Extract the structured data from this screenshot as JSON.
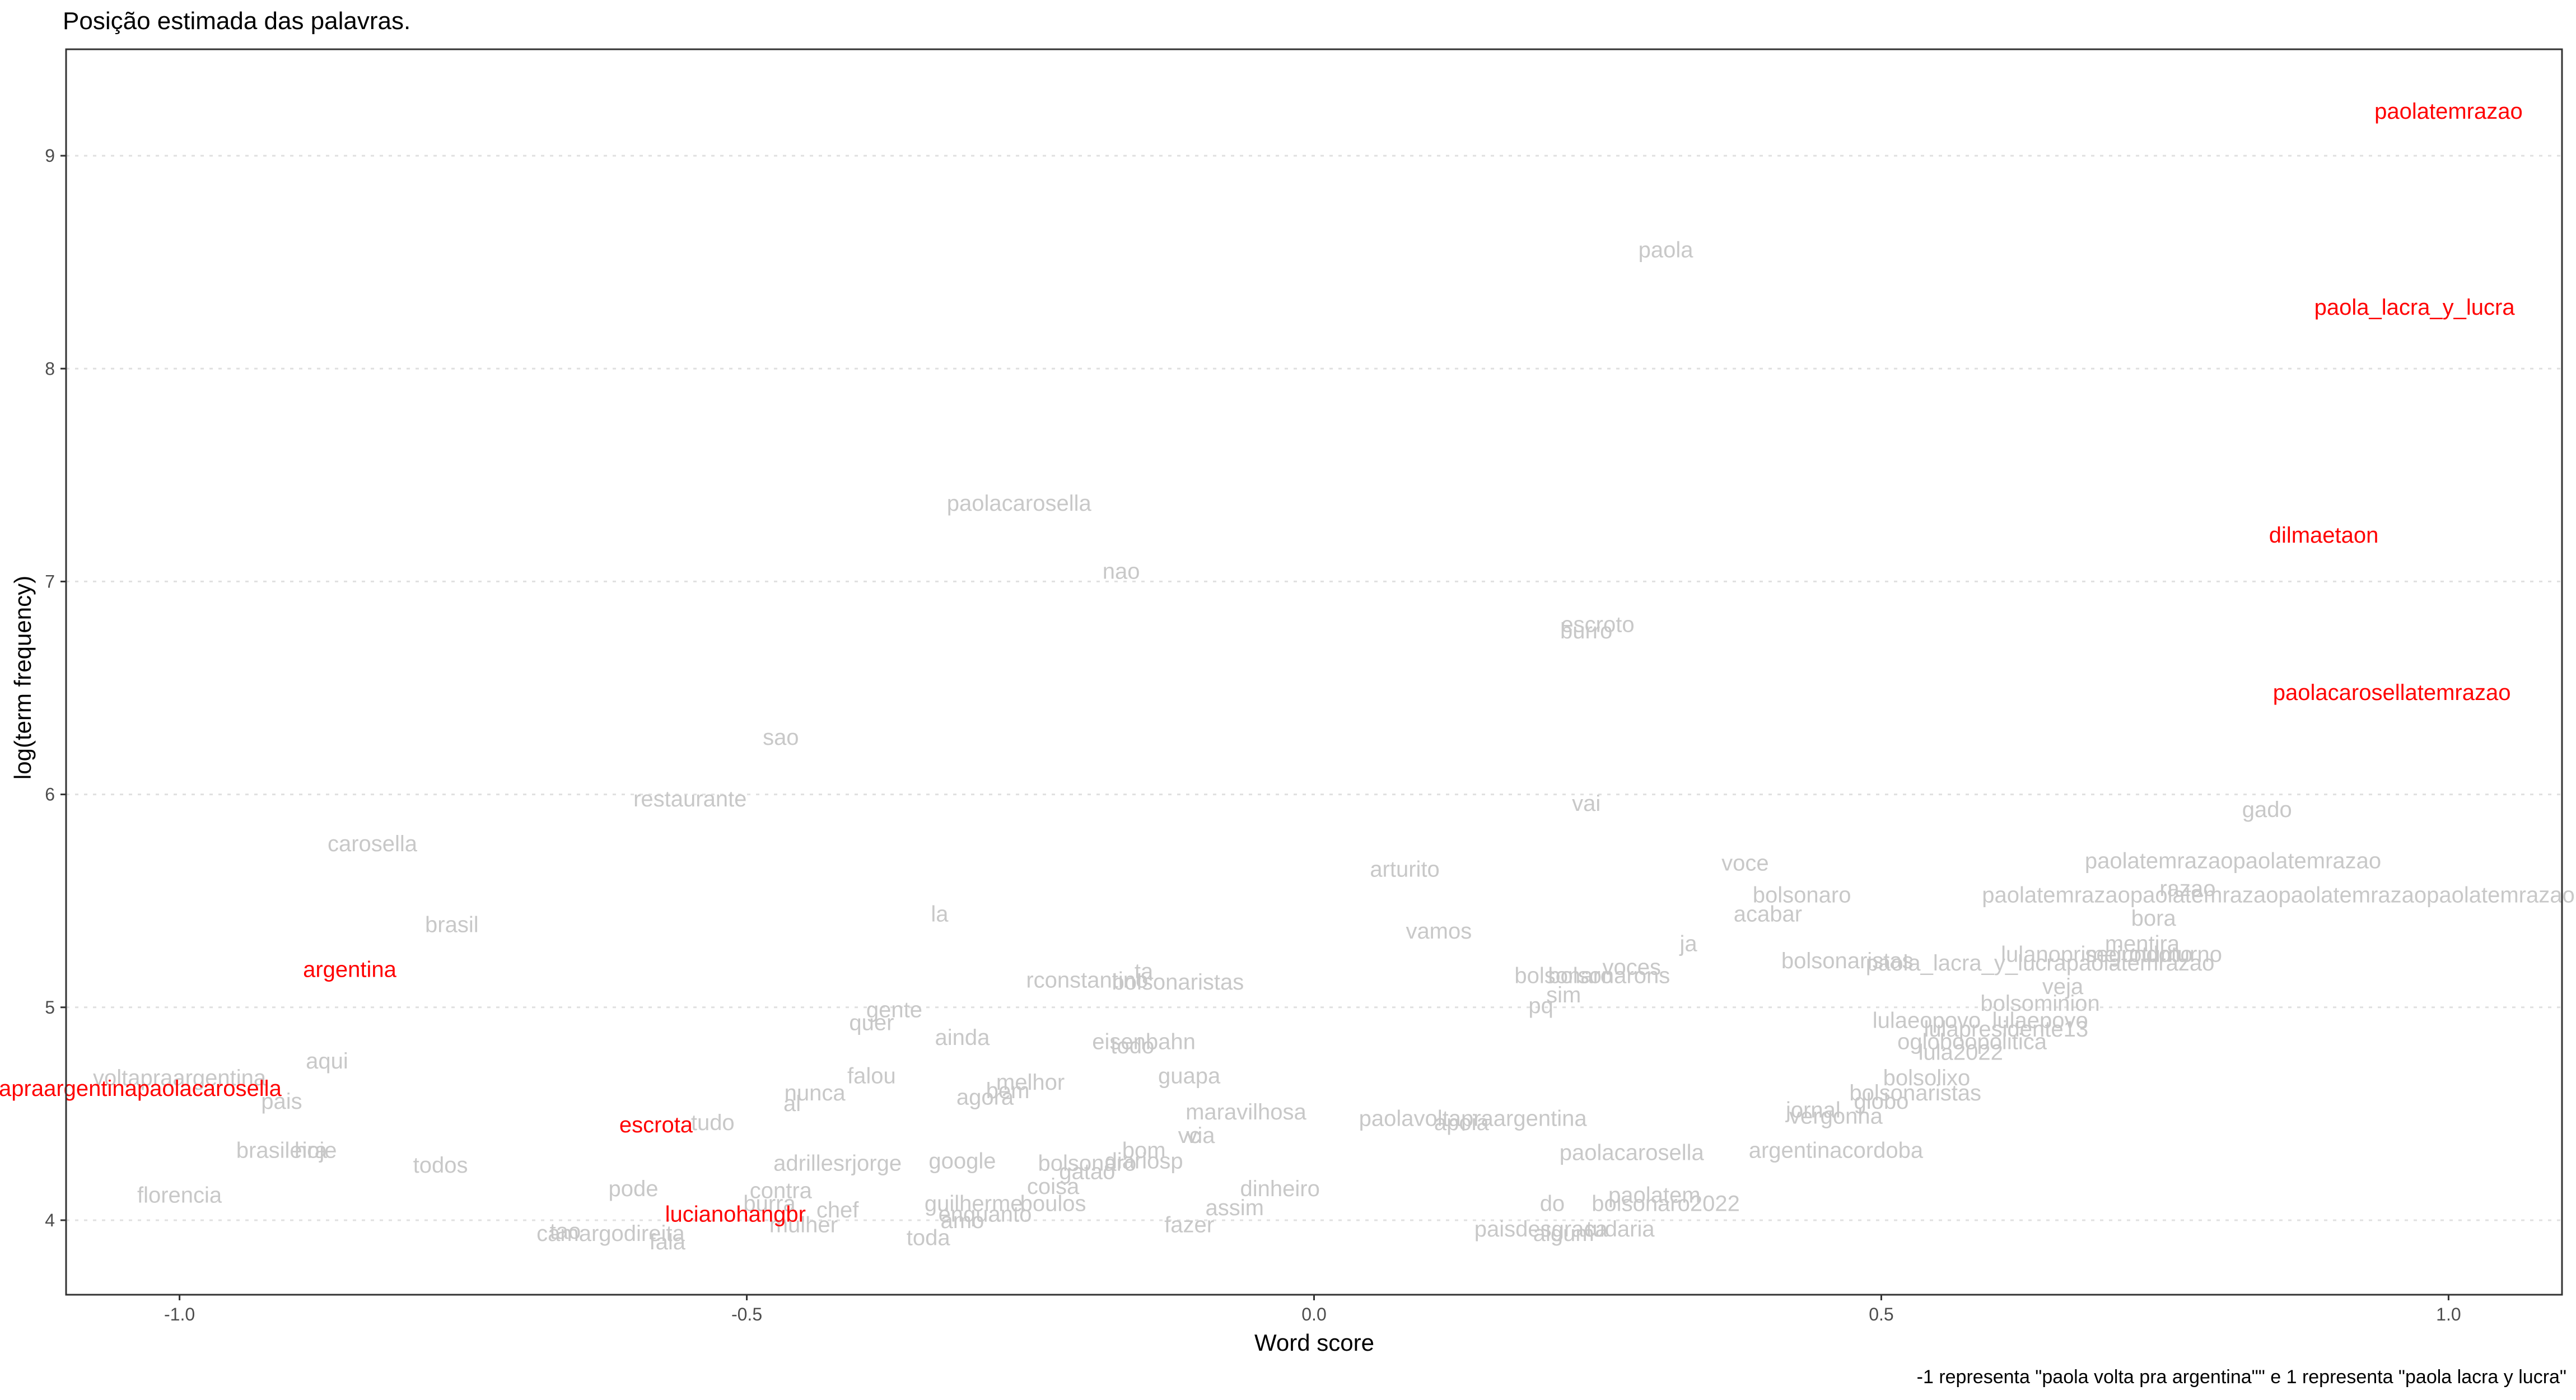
{
  "chart_data": {
    "type": "scatter",
    "title": "Posição estimada das palavras.",
    "caption": "-1 representa \"paola volta pra argentina\"\" e 1 representa \"paola lacra y lucra\"",
    "xlabel": "Word score",
    "ylabel": "log(term frequency)",
    "xlim": [
      -1.1,
      1.1
    ],
    "ylim": [
      3.65,
      9.5
    ],
    "x_ticks": [
      -1.0,
      -0.5,
      0.0,
      0.5,
      1.0
    ],
    "x_tick_labels": [
      "-1.0",
      "-0.5",
      "0.0",
      "0.5",
      "1.0"
    ],
    "y_ticks": [
      4,
      5,
      6,
      7,
      8,
      9
    ],
    "y_tick_labels": [
      "4",
      "5",
      "6",
      "7",
      "8",
      "9"
    ],
    "grid": "horizontal-dotted",
    "colors": {
      "highlight": "#ff0000",
      "other": "#c8c8c8",
      "panel_border": "#333333",
      "gridline": "#e0e0e0"
    },
    "points": [
      {
        "label": "paolatemrazao",
        "x": 1.0,
        "y": 9.21,
        "highlight": true
      },
      {
        "label": "paola_lacra_y_lucra",
        "x": 0.97,
        "y": 8.29,
        "highlight": true
      },
      {
        "label": "dilmaetaon",
        "x": 0.89,
        "y": 7.22,
        "highlight": true
      },
      {
        "label": "paolacarosellatemrazao",
        "x": 0.95,
        "y": 6.48,
        "highlight": true
      },
      {
        "label": "argentina",
        "x": -0.85,
        "y": 5.18,
        "highlight": true
      },
      {
        "label": "voltapraargentinapaolacarosella",
        "x": -1.05,
        "y": 4.62,
        "highlight": true
      },
      {
        "label": "escrota",
        "x": -0.58,
        "y": 4.45,
        "highlight": true
      },
      {
        "label": "lucianohangbr",
        "x": -0.51,
        "y": 4.03,
        "highlight": true
      },
      {
        "label": "paola",
        "x": 0.31,
        "y": 8.56,
        "highlight": false
      },
      {
        "label": "paolacarosella",
        "x": -0.26,
        "y": 7.37,
        "highlight": false
      },
      {
        "label": "nao",
        "x": -0.17,
        "y": 7.05,
        "highlight": false
      },
      {
        "label": "escroto",
        "x": 0.25,
        "y": 6.8,
        "highlight": false
      },
      {
        "label": "burro",
        "x": 0.24,
        "y": 6.77,
        "highlight": false
      },
      {
        "label": "sao",
        "x": -0.47,
        "y": 6.27,
        "highlight": false
      },
      {
        "label": "restaurante",
        "x": -0.55,
        "y": 5.98,
        "highlight": false
      },
      {
        "label": "vai",
        "x": 0.24,
        "y": 5.96,
        "highlight": false
      },
      {
        "label": "gado",
        "x": 0.84,
        "y": 5.93,
        "highlight": false
      },
      {
        "label": "carosella",
        "x": -0.83,
        "y": 5.77,
        "highlight": false
      },
      {
        "label": "arturito",
        "x": 0.08,
        "y": 5.65,
        "highlight": false
      },
      {
        "label": "voce",
        "x": 0.38,
        "y": 5.68,
        "highlight": false
      },
      {
        "label": "paolatemrazaopaolatemrazao",
        "x": 0.81,
        "y": 5.69,
        "highlight": false
      },
      {
        "label": "razao",
        "x": 0.77,
        "y": 5.56,
        "highlight": false
      },
      {
        "label": "bolsonaro",
        "x": 0.43,
        "y": 5.53,
        "highlight": false
      },
      {
        "label": "paolatemrazaopaolatemrazaopaolatemrazaopaolatemrazao",
        "x": 0.85,
        "y": 5.53,
        "highlight": false
      },
      {
        "label": "acabar",
        "x": 0.4,
        "y": 5.44,
        "highlight": false
      },
      {
        "label": "bora",
        "x": 0.74,
        "y": 5.42,
        "highlight": false
      },
      {
        "label": "la",
        "x": -0.33,
        "y": 5.44,
        "highlight": false
      },
      {
        "label": "brasil",
        "x": -0.76,
        "y": 5.39,
        "highlight": false
      },
      {
        "label": "vamos",
        "x": 0.11,
        "y": 5.36,
        "highlight": false
      },
      {
        "label": "ja",
        "x": 0.33,
        "y": 5.3,
        "highlight": false
      },
      {
        "label": "mentira",
        "x": 0.73,
        "y": 5.3,
        "highlight": false
      },
      {
        "label": "segundoturno",
        "x": 0.74,
        "y": 5.25,
        "highlight": false
      },
      {
        "label": "lulanoprimeiroturno",
        "x": 0.69,
        "y": 5.25,
        "highlight": false
      },
      {
        "label": "bolsonaristas",
        "x": 0.47,
        "y": 5.22,
        "highlight": false
      },
      {
        "label": "paola_lacra_y_lucrapaolatemrazao",
        "x": 0.64,
        "y": 5.21,
        "highlight": false
      },
      {
        "label": "voces",
        "x": 0.28,
        "y": 5.19,
        "highlight": false
      },
      {
        "label": "ta",
        "x": -0.15,
        "y": 5.17,
        "highlight": false
      },
      {
        "label": "bolsonarons",
        "x": 0.26,
        "y": 5.15,
        "highlight": false
      },
      {
        "label": "bolsonaro",
        "x": 0.22,
        "y": 5.15,
        "highlight": false
      },
      {
        "label": "rconstantino",
        "x": -0.2,
        "y": 5.13,
        "highlight": false
      },
      {
        "label": "bolsonaristas",
        "x": -0.12,
        "y": 5.12,
        "highlight": false
      },
      {
        "label": "veja",
        "x": 0.66,
        "y": 5.1,
        "highlight": false
      },
      {
        "label": "sim",
        "x": 0.22,
        "y": 5.06,
        "highlight": false
      },
      {
        "label": "bolsominion",
        "x": 0.64,
        "y": 5.02,
        "highlight": false
      },
      {
        "label": "pq",
        "x": 0.2,
        "y": 5.01,
        "highlight": false
      },
      {
        "label": "gente",
        "x": -0.37,
        "y": 4.99,
        "highlight": false
      },
      {
        "label": "quer",
        "x": -0.39,
        "y": 4.93,
        "highlight": false
      },
      {
        "label": "lulaeopovo",
        "x": 0.54,
        "y": 4.94,
        "highlight": false
      },
      {
        "label": "lulaepovo",
        "x": 0.64,
        "y": 4.94,
        "highlight": false
      },
      {
        "label": "lulapresidente13",
        "x": 0.61,
        "y": 4.9,
        "highlight": false
      },
      {
        "label": "ainda",
        "x": -0.31,
        "y": 4.86,
        "highlight": false
      },
      {
        "label": "eisenbahn",
        "x": -0.15,
        "y": 4.84,
        "highlight": false
      },
      {
        "label": "todo",
        "x": -0.16,
        "y": 4.82,
        "highlight": false
      },
      {
        "label": "aqui",
        "x": -0.87,
        "y": 4.75,
        "highlight": false
      },
      {
        "label": "ogloboopolitica",
        "x": 0.58,
        "y": 4.84,
        "highlight": false
      },
      {
        "label": "lula2022",
        "x": 0.57,
        "y": 4.79,
        "highlight": false
      },
      {
        "label": "voltapraargentina",
        "x": -1.0,
        "y": 4.67,
        "highlight": false
      },
      {
        "label": "falou",
        "x": -0.39,
        "y": 4.68,
        "highlight": false
      },
      {
        "label": "guapa",
        "x": -0.11,
        "y": 4.68,
        "highlight": false
      },
      {
        "label": "melhor",
        "x": -0.25,
        "y": 4.65,
        "highlight": false
      },
      {
        "label": "bolsolixo",
        "x": 0.54,
        "y": 4.67,
        "highlight": false
      },
      {
        "label": "nunca",
        "x": -0.44,
        "y": 4.6,
        "highlight": false
      },
      {
        "label": "agora",
        "x": -0.29,
        "y": 4.58,
        "highlight": false
      },
      {
        "label": "bem",
        "x": -0.27,
        "y": 4.61,
        "highlight": false
      },
      {
        "label": "pais",
        "x": -0.91,
        "y": 4.56,
        "highlight": false
      },
      {
        "label": "bolsonaristas",
        "x": 0.53,
        "y": 4.6,
        "highlight": false
      },
      {
        "label": "globo",
        "x": 0.5,
        "y": 4.56,
        "highlight": false
      },
      {
        "label": "al",
        "x": -0.46,
        "y": 4.55,
        "highlight": false
      },
      {
        "label": "maravilhosa",
        "x": -0.06,
        "y": 4.51,
        "highlight": false
      },
      {
        "label": "paolavoltapraargentina",
        "x": 0.14,
        "y": 4.48,
        "highlight": false
      },
      {
        "label": "jornal",
        "x": 0.44,
        "y": 4.52,
        "highlight": false
      },
      {
        "label": "vergonha",
        "x": 0.46,
        "y": 4.49,
        "highlight": false
      },
      {
        "label": "tudo",
        "x": -0.53,
        "y": 4.46,
        "highlight": false
      },
      {
        "label": "apoia",
        "x": 0.13,
        "y": 4.46,
        "highlight": false
      },
      {
        "label": "vc",
        "x": -0.11,
        "y": 4.4,
        "highlight": false
      },
      {
        "label": "via",
        "x": -0.1,
        "y": 4.4,
        "highlight": false
      },
      {
        "label": "brasileira",
        "x": -0.91,
        "y": 4.33,
        "highlight": false
      },
      {
        "label": "hoje",
        "x": -0.88,
        "y": 4.33,
        "highlight": false
      },
      {
        "label": "paolacarosella",
        "x": 0.28,
        "y": 4.32,
        "highlight": false
      },
      {
        "label": "argentinacordoba",
        "x": 0.46,
        "y": 4.33,
        "highlight": false
      },
      {
        "label": "bom",
        "x": -0.15,
        "y": 4.33,
        "highlight": false
      },
      {
        "label": "todos",
        "x": -0.77,
        "y": 4.26,
        "highlight": false
      },
      {
        "label": "adrillesrjorge",
        "x": -0.42,
        "y": 4.27,
        "highlight": false
      },
      {
        "label": "google",
        "x": -0.31,
        "y": 4.28,
        "highlight": false
      },
      {
        "label": "bolsonaro",
        "x": -0.2,
        "y": 4.27,
        "highlight": false
      },
      {
        "label": "diariosp",
        "x": -0.15,
        "y": 4.28,
        "highlight": false
      },
      {
        "label": "gatao",
        "x": -0.2,
        "y": 4.23,
        "highlight": false
      },
      {
        "label": "coisa",
        "x": -0.23,
        "y": 4.16,
        "highlight": false
      },
      {
        "label": "pode",
        "x": -0.6,
        "y": 4.15,
        "highlight": false
      },
      {
        "label": "contra",
        "x": -0.47,
        "y": 4.14,
        "highlight": false
      },
      {
        "label": "dinheiro",
        "x": -0.03,
        "y": 4.15,
        "highlight": false
      },
      {
        "label": "florencia",
        "x": -1.0,
        "y": 4.12,
        "highlight": false
      },
      {
        "label": "chef",
        "x": -0.42,
        "y": 4.05,
        "highlight": false
      },
      {
        "label": "burra",
        "x": -0.48,
        "y": 4.08,
        "highlight": false
      },
      {
        "label": "guilherme",
        "x": -0.3,
        "y": 4.08,
        "highlight": false
      },
      {
        "label": "boulos",
        "x": -0.23,
        "y": 4.08,
        "highlight": false
      },
      {
        "label": "assim",
        "x": -0.07,
        "y": 4.06,
        "highlight": false
      },
      {
        "label": "enquanto",
        "x": -0.29,
        "y": 4.03,
        "highlight": false
      },
      {
        "label": "amo",
        "x": -0.31,
        "y": 4.0,
        "highlight": false
      },
      {
        "label": "fazer",
        "x": -0.11,
        "y": 3.98,
        "highlight": false
      },
      {
        "label": "mulher",
        "x": -0.45,
        "y": 3.98,
        "highlight": false
      },
      {
        "label": "tao",
        "x": -0.66,
        "y": 3.95,
        "highlight": false
      },
      {
        "label": "camargodireita",
        "x": -0.62,
        "y": 3.94,
        "highlight": false
      },
      {
        "label": "fala",
        "x": -0.57,
        "y": 3.9,
        "highlight": false
      },
      {
        "label": "toda",
        "x": -0.34,
        "y": 3.92,
        "highlight": false
      },
      {
        "label": "do",
        "x": 0.21,
        "y": 4.08,
        "highlight": false
      },
      {
        "label": "paolatem",
        "x": 0.3,
        "y": 4.12,
        "highlight": false
      },
      {
        "label": "bolsonaro2022",
        "x": 0.31,
        "y": 4.08,
        "highlight": false
      },
      {
        "label": "paisdesgraca",
        "x": 0.2,
        "y": 3.96,
        "highlight": false
      },
      {
        "label": "algum",
        "x": 0.22,
        "y": 3.94,
        "highlight": false
      },
      {
        "label": "tudaria",
        "x": 0.27,
        "y": 3.96,
        "highlight": false
      }
    ]
  }
}
